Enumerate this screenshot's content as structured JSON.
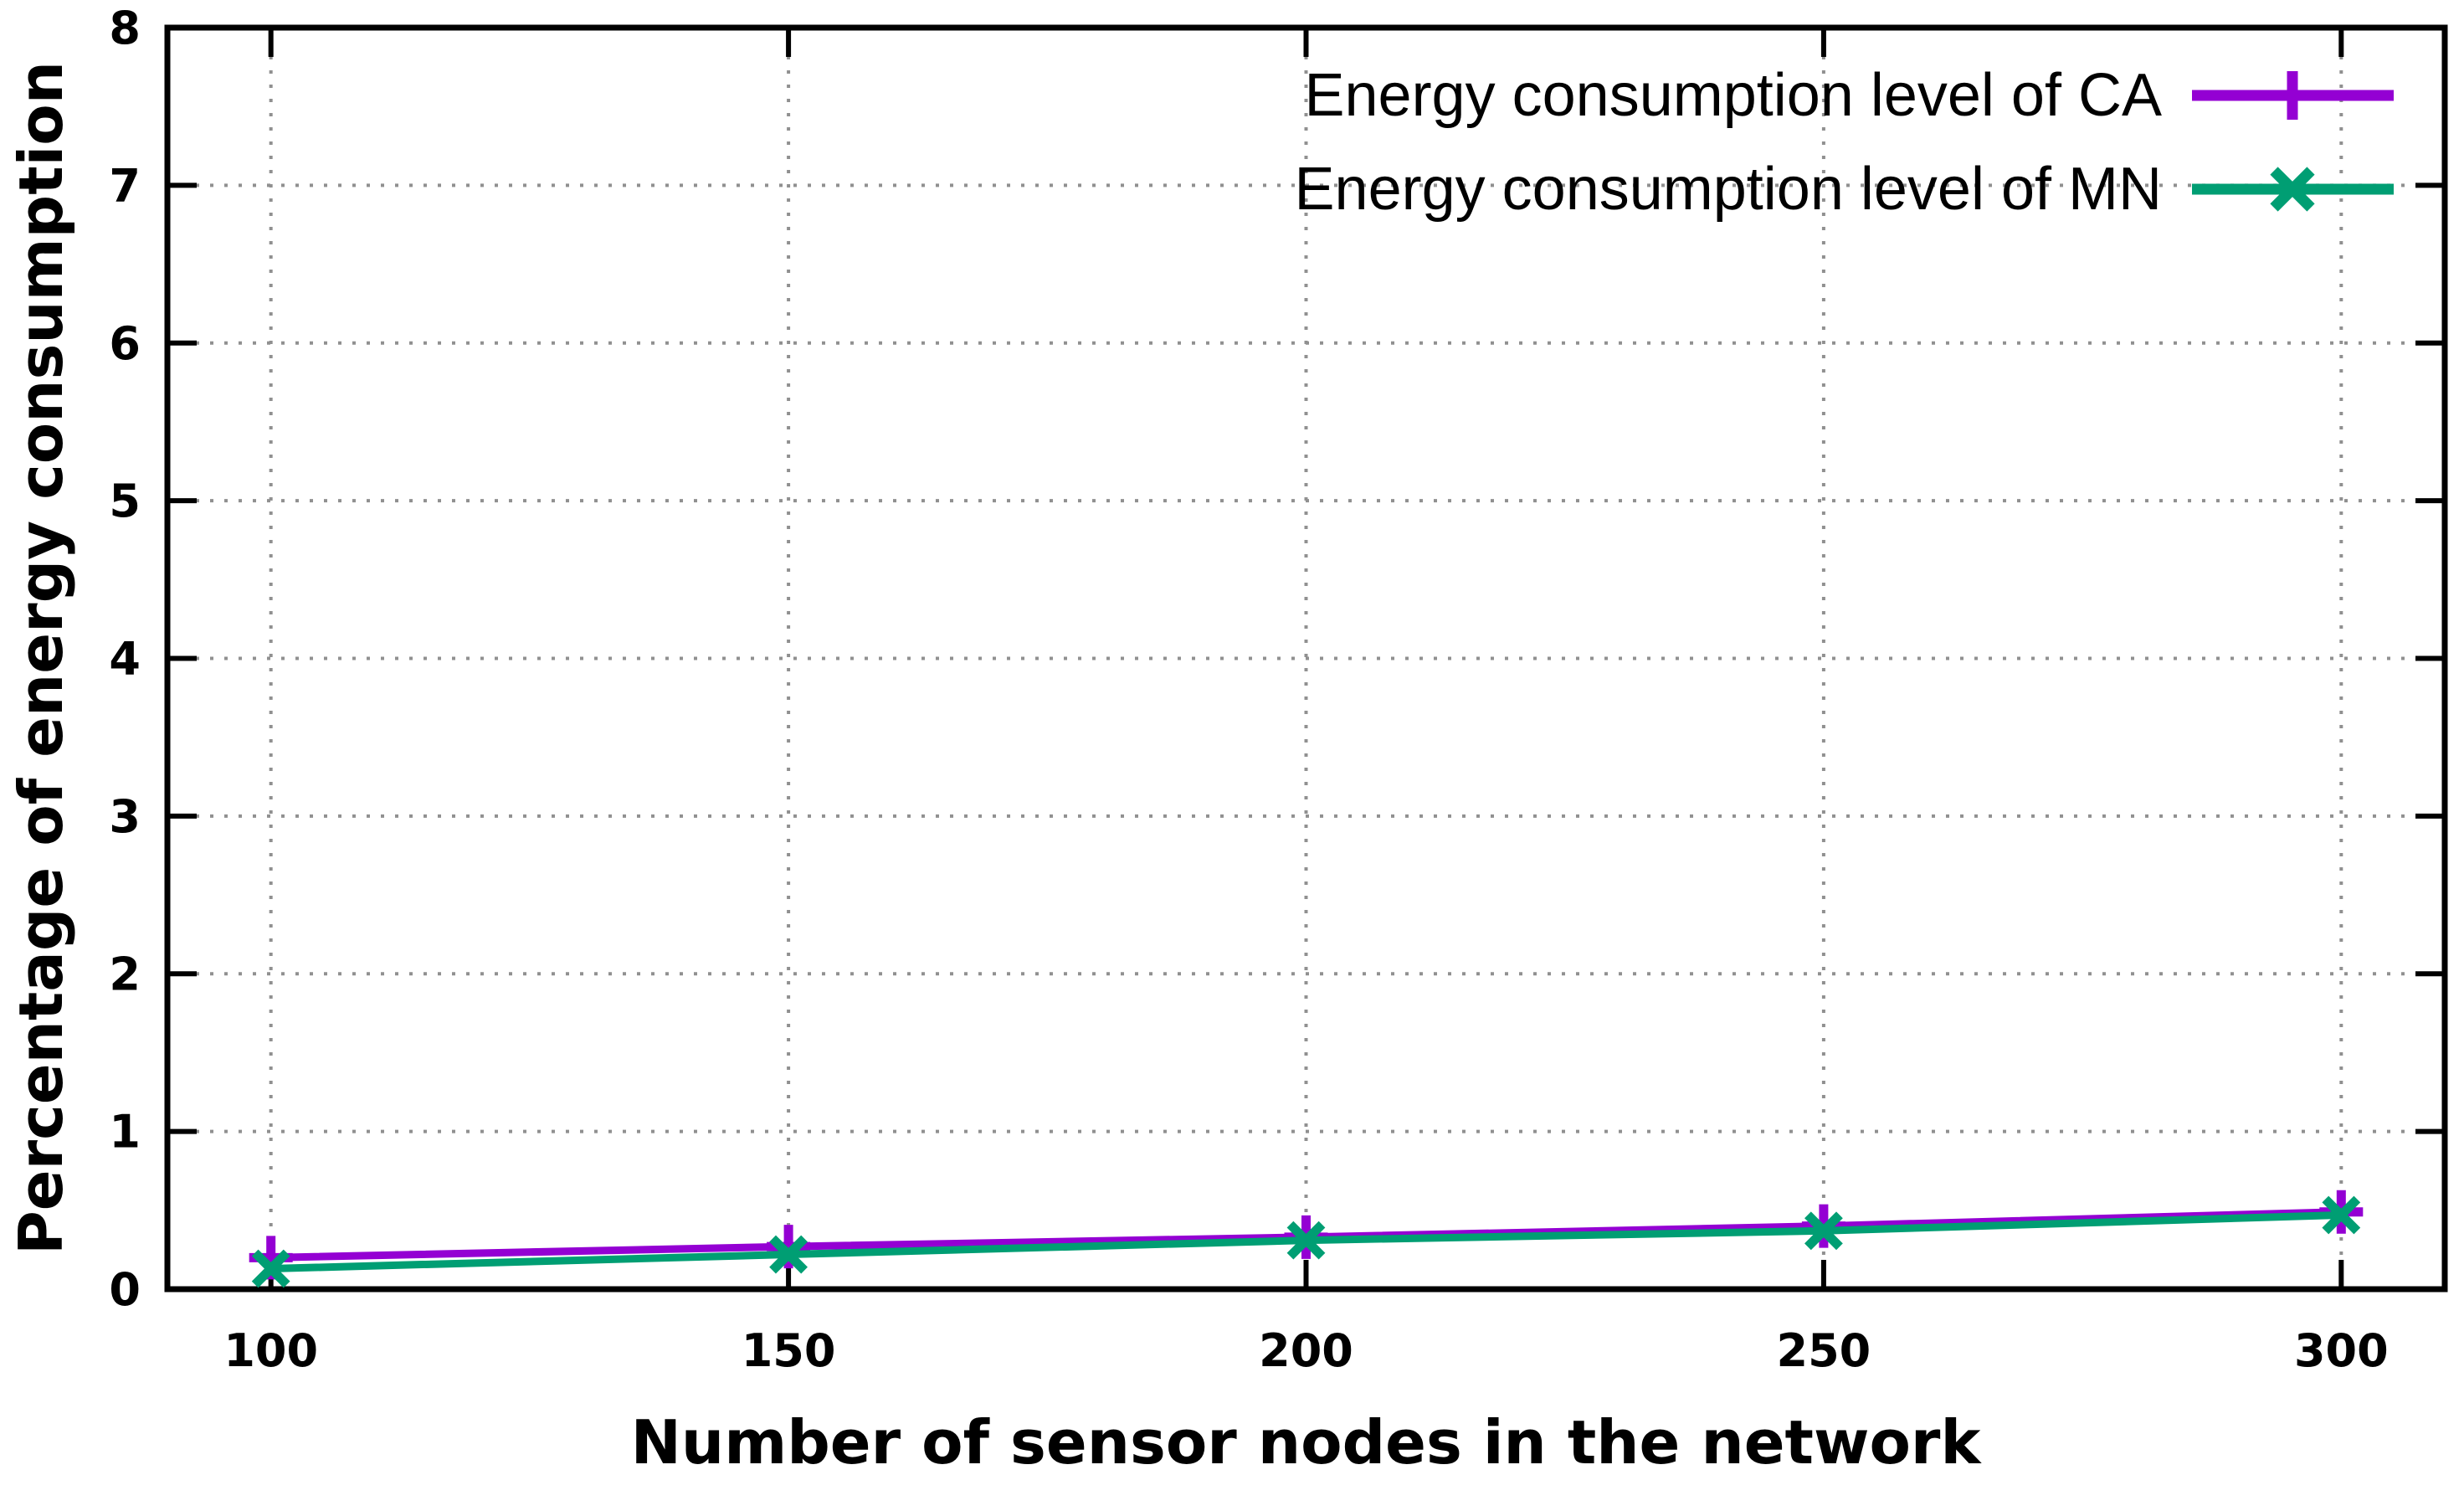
{
  "figure": {
    "background": "#ffffff",
    "axis_color": "#000000",
    "grid_color": "#909090",
    "text_color": "#000000"
  },
  "chart_data": {
    "type": "line",
    "title": "",
    "xlabel": "Number of sensor nodes in the network",
    "ylabel": "Percentage of energy consumption",
    "x": [
      100,
      150,
      200,
      250,
      300
    ],
    "x_ticks": [
      "100",
      "150",
      "200",
      "250",
      "300"
    ],
    "y_ticks": [
      "0",
      "1",
      "2",
      "3",
      "4",
      "5",
      "6",
      "7",
      "8"
    ],
    "xlim": [
      90,
      310
    ],
    "ylim": [
      0,
      8
    ],
    "grid": "dotted",
    "legend_position": "top-right-inside",
    "series": [
      {
        "name": "Energy consumption level of CA",
        "color": "#9400d3",
        "marker": "plus",
        "values": [
          0.2,
          0.27,
          0.33,
          0.4,
          0.49
        ]
      },
      {
        "name": "Energy consumption level of MN",
        "color": "#009e73",
        "marker": "cross",
        "values": [
          0.13,
          0.22,
          0.31,
          0.37,
          0.47
        ]
      }
    ]
  }
}
